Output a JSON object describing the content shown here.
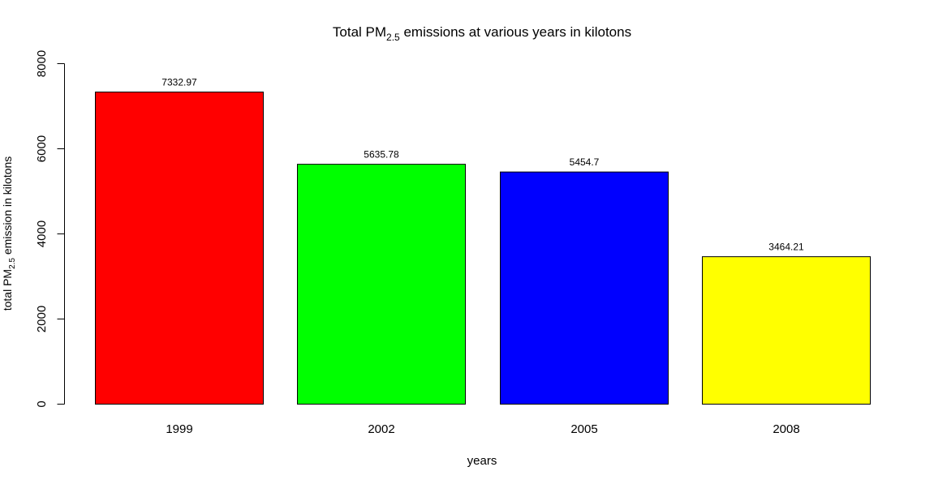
{
  "chart_data": {
    "type": "bar",
    "title": {
      "prefix": "Total PM",
      "subscript": "2.5",
      "suffix": " emissions at various years in kilotons"
    },
    "xlabel": "years",
    "ylabel": {
      "prefix": "total PM",
      "subscript": "2.5",
      "suffix": " emission in kilotons"
    },
    "categories": [
      "1999",
      "2002",
      "2005",
      "2008"
    ],
    "values": [
      7332.97,
      5635.78,
      5454.7,
      3464.21
    ],
    "data_labels": [
      "7332.97",
      "5635.78",
      "5454.7",
      "3464.21"
    ],
    "colors": [
      "#ff0000",
      "#00ff00",
      "#0000ff",
      "#ffff00"
    ],
    "ylim": [
      0,
      8000
    ],
    "yticks": [
      0,
      2000,
      4000,
      6000,
      8000
    ],
    "ytick_labels": [
      "0",
      "2000",
      "4000",
      "6000",
      "8000"
    ],
    "grid": false,
    "legend": "none"
  }
}
